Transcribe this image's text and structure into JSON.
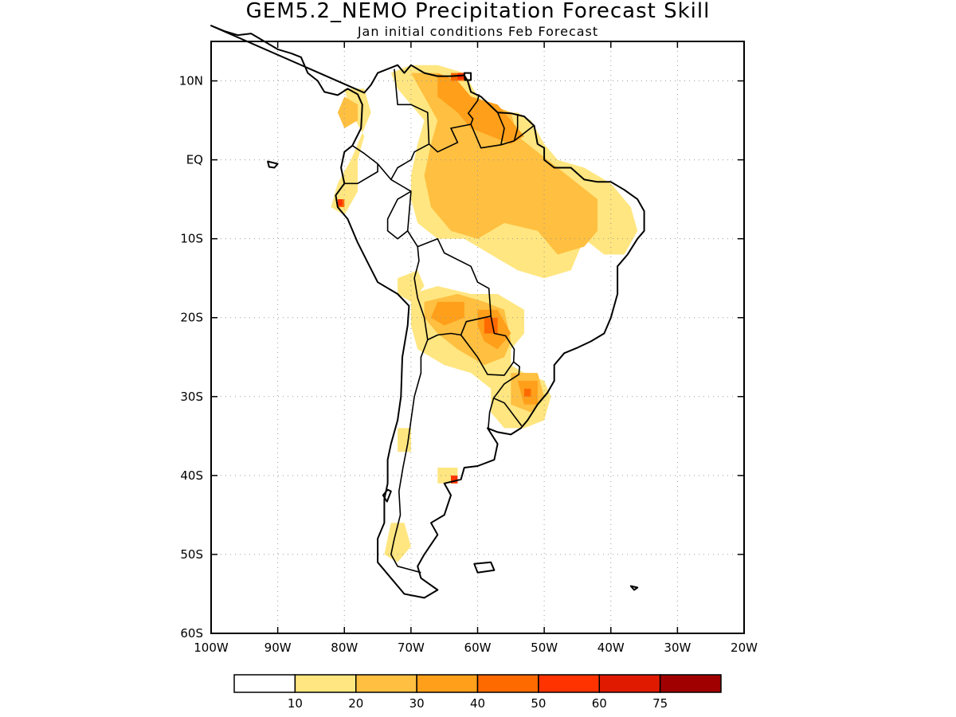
{
  "title": "GEM5.2_NEMO Precipitation Forecast Skill",
  "subtitle": "Jan initial conditions  Feb Forecast",
  "map": {
    "region": "South America",
    "lon_range": [
      -100,
      -20
    ],
    "lat_range": [
      -60,
      15
    ],
    "lon_ticks": [
      {
        "value": -100,
        "label": "100W"
      },
      {
        "value": -90,
        "label": "90W"
      },
      {
        "value": -80,
        "label": "80W"
      },
      {
        "value": -70,
        "label": "70W"
      },
      {
        "value": -60,
        "label": "60W"
      },
      {
        "value": -50,
        "label": "50W"
      },
      {
        "value": -40,
        "label": "40W"
      },
      {
        "value": -30,
        "label": "30W"
      },
      {
        "value": -20,
        "label": "20W"
      }
    ],
    "lat_ticks": [
      {
        "value": 10,
        "label": "10N"
      },
      {
        "value": 0,
        "label": "EQ"
      },
      {
        "value": -10,
        "label": "10S"
      },
      {
        "value": -20,
        "label": "20S"
      },
      {
        "value": -30,
        "label": "30S"
      },
      {
        "value": -40,
        "label": "40S"
      },
      {
        "value": -50,
        "label": "50S"
      },
      {
        "value": -60,
        "label": "60S"
      }
    ],
    "grid": "dotted"
  },
  "colorbar": {
    "bins": [
      {
        "color": "#ffffff"
      },
      {
        "color": "#ffe680"
      },
      {
        "color": "#ffbf40"
      },
      {
        "color": "#ff9f1a"
      },
      {
        "color": "#ff6a00"
      },
      {
        "color": "#ff3300"
      },
      {
        "color": "#e01a00"
      },
      {
        "color": "#a00000"
      }
    ],
    "labels": [
      "10",
      "20",
      "30",
      "40",
      "50",
      "60",
      "75"
    ]
  },
  "skill_regions": [
    {
      "level": 1,
      "points": [
        [
          -73,
          11
        ],
        [
          -70,
          12
        ],
        [
          -66,
          12
        ],
        [
          -62,
          11
        ],
        [
          -60,
          8
        ],
        [
          -57,
          6
        ],
        [
          -54,
          6
        ],
        [
          -52,
          5
        ],
        [
          -50,
          2
        ],
        [
          -48,
          0
        ],
        [
          -44,
          -1
        ],
        [
          -40,
          -3
        ],
        [
          -37,
          -6
        ],
        [
          -36,
          -9
        ],
        [
          -38,
          -12
        ],
        [
          -41,
          -12
        ],
        [
          -44,
          -10
        ],
        [
          -46,
          -14
        ],
        [
          -50,
          -15
        ],
        [
          -54,
          -14
        ],
        [
          -58,
          -12
        ],
        [
          -62,
          -10
        ],
        [
          -66,
          -10
        ],
        [
          -69,
          -8
        ],
        [
          -70,
          -5
        ],
        [
          -70,
          -2
        ],
        [
          -69,
          2
        ],
        [
          -68,
          5
        ],
        [
          -70,
          7
        ],
        [
          -72,
          9
        ]
      ]
    },
    {
      "level": 1,
      "points": [
        [
          -80,
          9
        ],
        [
          -77,
          9
        ],
        [
          -76,
          6
        ],
        [
          -77,
          4
        ],
        [
          -78,
          2
        ],
        [
          -79,
          0
        ],
        [
          -81,
          -3
        ],
        [
          -82,
          -6
        ],
        [
          -80,
          -7
        ],
        [
          -78,
          -4
        ],
        [
          -78,
          0
        ],
        [
          -77,
          3
        ],
        [
          -79,
          6
        ]
      ]
    },
    {
      "level": 1,
      "points": [
        [
          -72,
          -15
        ],
        [
          -69,
          -14
        ],
        [
          -68,
          -16
        ],
        [
          -70,
          -18
        ],
        [
          -72,
          -17
        ]
      ]
    },
    {
      "level": 1,
      "points": [
        [
          -70,
          -17
        ],
        [
          -66,
          -16
        ],
        [
          -61,
          -17
        ],
        [
          -57,
          -17
        ],
        [
          -53,
          -19
        ],
        [
          -53,
          -22
        ],
        [
          -55,
          -24
        ],
        [
          -55,
          -26
        ],
        [
          -53,
          -27
        ],
        [
          -50,
          -28
        ],
        [
          -49,
          -30
        ],
        [
          -50,
          -33
        ],
        [
          -53,
          -34
        ],
        [
          -56,
          -34
        ],
        [
          -58,
          -32
        ],
        [
          -58,
          -29
        ],
        [
          -61,
          -27
        ],
        [
          -65,
          -26
        ],
        [
          -67,
          -25
        ],
        [
          -69,
          -24
        ],
        [
          -70,
          -21
        ]
      ]
    },
    {
      "level": 1,
      "points": [
        [
          -72,
          -34
        ],
        [
          -70,
          -34
        ],
        [
          -70,
          -37
        ],
        [
          -72,
          -37
        ]
      ]
    },
    {
      "level": 1,
      "points": [
        [
          -66,
          -39
        ],
        [
          -63,
          -39
        ],
        [
          -63,
          -41
        ],
        [
          -66,
          -41
        ]
      ]
    },
    {
      "level": 1,
      "points": [
        [
          -73,
          -46
        ],
        [
          -71,
          -46
        ],
        [
          -70,
          -49
        ],
        [
          -72,
          -51
        ],
        [
          -74,
          -50
        ]
      ]
    },
    {
      "level": 2,
      "points": [
        [
          -70,
          11
        ],
        [
          -66,
          11
        ],
        [
          -63,
          9
        ],
        [
          -62,
          7
        ],
        [
          -58,
          7
        ],
        [
          -55,
          6
        ],
        [
          -54,
          3
        ],
        [
          -51,
          1
        ],
        [
          -48,
          -1
        ],
        [
          -45,
          -3
        ],
        [
          -42,
          -5
        ],
        [
          -42,
          -9
        ],
        [
          -44,
          -11
        ],
        [
          -48,
          -12
        ],
        [
          -51,
          -9
        ],
        [
          -56,
          -8
        ],
        [
          -60,
          -10
        ],
        [
          -64,
          -9
        ],
        [
          -67,
          -6
        ],
        [
          -68,
          -2
        ],
        [
          -67,
          2
        ],
        [
          -66,
          5
        ],
        [
          -68,
          8
        ]
      ]
    },
    {
      "level": 2,
      "points": [
        [
          -68,
          -18
        ],
        [
          -63,
          -17
        ],
        [
          -59,
          -18
        ],
        [
          -56,
          -19
        ],
        [
          -55,
          -23
        ],
        [
          -56,
          -25
        ],
        [
          -59,
          -26
        ],
        [
          -63,
          -24
        ],
        [
          -66,
          -22
        ],
        [
          -68,
          -20
        ]
      ]
    },
    {
      "level": 2,
      "points": [
        [
          -55,
          -27
        ],
        [
          -51,
          -27
        ],
        [
          -50,
          -30
        ],
        [
          -52,
          -32
        ],
        [
          -55,
          -31
        ]
      ]
    },
    {
      "level": 2,
      "points": [
        [
          -80,
          8
        ],
        [
          -78,
          7
        ],
        [
          -78,
          5
        ],
        [
          -80,
          4
        ],
        [
          -81,
          6
        ]
      ]
    },
    {
      "level": 3,
      "points": [
        [
          -66,
          11
        ],
        [
          -63,
          10
        ],
        [
          -61,
          8
        ],
        [
          -57,
          7
        ],
        [
          -55,
          5
        ],
        [
          -53,
          3
        ],
        [
          -55,
          2
        ],
        [
          -58,
          3
        ],
        [
          -61,
          4
        ],
        [
          -63,
          6
        ],
        [
          -66,
          8
        ]
      ]
    },
    {
      "level": 3,
      "points": [
        [
          -60,
          -19
        ],
        [
          -57,
          -19
        ],
        [
          -55,
          -22
        ],
        [
          -57,
          -24
        ],
        [
          -59,
          -23
        ],
        [
          -60,
          -21
        ]
      ]
    },
    {
      "level": 3,
      "points": [
        [
          -54,
          -28
        ],
        [
          -51,
          -28
        ],
        [
          -51,
          -31
        ],
        [
          -53,
          -31
        ]
      ]
    },
    {
      "level": 3,
      "points": [
        [
          -66,
          -18
        ],
        [
          -62,
          -18
        ],
        [
          -62,
          -20
        ],
        [
          -65,
          -21
        ],
        [
          -67,
          -20
        ]
      ]
    },
    {
      "level": 4,
      "points": [
        [
          -64,
          11
        ],
        [
          -62,
          11
        ],
        [
          -62,
          10
        ],
        [
          -64,
          10
        ]
      ]
    },
    {
      "level": 4,
      "points": [
        [
          -81,
          -5
        ],
        [
          -80,
          -5
        ],
        [
          -80,
          -6
        ],
        [
          -81,
          -6
        ]
      ]
    },
    {
      "level": 4,
      "points": [
        [
          -59,
          -20
        ],
        [
          -57,
          -20
        ],
        [
          -57,
          -22
        ],
        [
          -59,
          -22
        ]
      ]
    },
    {
      "level": 4,
      "points": [
        [
          -53,
          -29
        ],
        [
          -52,
          -29
        ],
        [
          -52,
          -30
        ],
        [
          -53,
          -30
        ]
      ]
    },
    {
      "level": 5,
      "points": [
        [
          -63,
          11
        ],
        [
          -62,
          11
        ],
        [
          -62,
          10.2
        ],
        [
          -63,
          10.2
        ]
      ]
    },
    {
      "level": 5,
      "points": [
        [
          -64,
          -40
        ],
        [
          -63,
          -40
        ],
        [
          -63,
          -41
        ],
        [
          -64,
          -41
        ]
      ]
    },
    {
      "level": 5,
      "points": [
        [
          -81,
          -5
        ],
        [
          -80.3,
          -5
        ],
        [
          -80.3,
          -5.8
        ],
        [
          -81,
          -5.8
        ]
      ]
    }
  ]
}
